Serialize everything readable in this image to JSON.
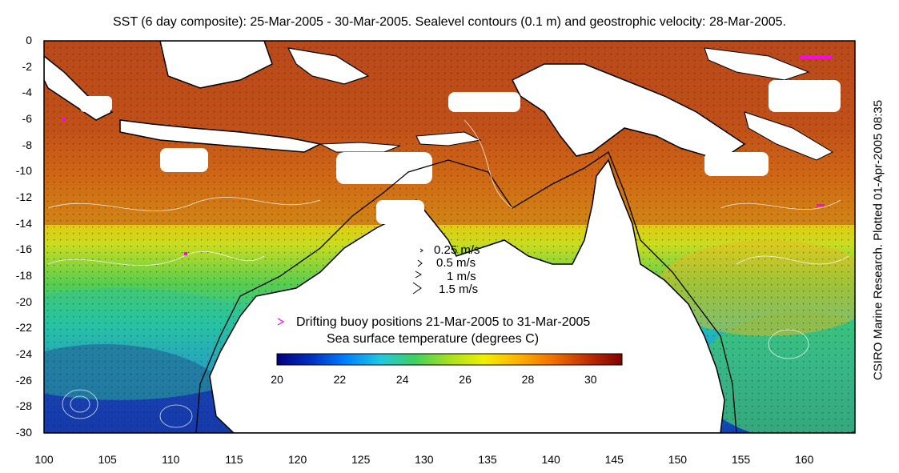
{
  "title": "SST (6 day composite): 25-Mar-2005 - 30-Mar-2005. Sealevel contours (0.1 m) and geostrophic velocity: 28-Mar-2005.",
  "credit": "CSIRO Marine Research. Plotted 01-Apr-2005 08:35",
  "x_ticks": [
    "100",
    "105",
    "110",
    "115",
    "120",
    "125",
    "130",
    "135",
    "140",
    "145",
    "150",
    "155",
    "160"
  ],
  "y_ticks": [
    "0",
    "-2",
    "-4",
    "-6",
    "-8",
    "-10",
    "-12",
    "-14",
    "-16",
    "-18",
    "-20",
    "-22",
    "-24",
    "-26",
    "-28",
    "-30"
  ],
  "velocity_legend": [
    "0.25 m/s",
    "0.5 m/s",
    "1 m/s",
    "1.5 m/s"
  ],
  "buoy_label": "Drifting buoy positions 21-Mar-2005 to 31-Mar-2005",
  "colorbar": {
    "label": "Sea surface temperature (degrees C)",
    "ticks": [
      "20",
      "22",
      "24",
      "26",
      "28",
      "30"
    ],
    "range": [
      20,
      31
    ],
    "colors": [
      "#00007f",
      "#0030c0",
      "#0080ff",
      "#20c8e0",
      "#40d060",
      "#a8e020",
      "#f0f000",
      "#ffb000",
      "#f07000",
      "#c03000",
      "#800000"
    ]
  },
  "axes": {
    "lon_range": [
      100,
      164
    ],
    "lat_range": [
      -30,
      0
    ]
  },
  "colors": {
    "land": "#ffffff",
    "coast": "#000000",
    "buoy": "#ff00ff"
  }
}
